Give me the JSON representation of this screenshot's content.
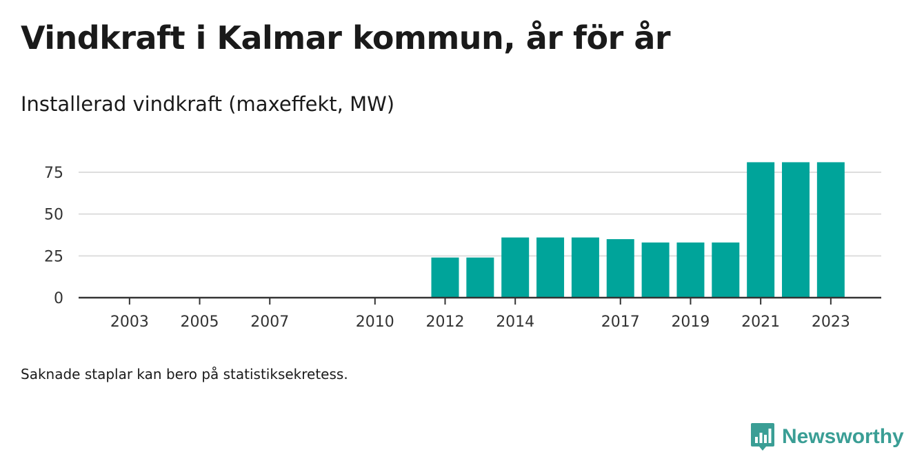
{
  "title": "Vindkraft i Kalmar kommun, år för år",
  "subtitle": "Installerad vindkraft (maxeffekt, MW)",
  "note": "Saknade staplar kan bero på statistiksekretess.",
  "brand": {
    "name": "Newsworthy",
    "color": "#3a9e95",
    "icon": "bar-chart-speech-bubble-icon"
  },
  "chart_data": {
    "type": "bar",
    "title": "Installerad vindkraft (maxeffekt, MW)",
    "xlabel": "",
    "ylabel": "",
    "ylim": [
      0,
      85
    ],
    "grid": true,
    "legend": "none",
    "bar_color": "#00a49a",
    "x_ticks": [
      2003,
      2005,
      2007,
      2010,
      2012,
      2014,
      2017,
      2019,
      2021,
      2023
    ],
    "y_ticks": [
      0,
      25,
      50,
      75
    ],
    "categories": [
      2002,
      2003,
      2004,
      2005,
      2006,
      2007,
      2008,
      2009,
      2010,
      2011,
      2012,
      2013,
      2014,
      2015,
      2016,
      2017,
      2018,
      2019,
      2020,
      2021,
      2022,
      2023
    ],
    "values": [
      0,
      0,
      0,
      0,
      0,
      0,
      0,
      0,
      0,
      0,
      24,
      24,
      36,
      36,
      36,
      35,
      33,
      33,
      33,
      81,
      81,
      81
    ]
  }
}
